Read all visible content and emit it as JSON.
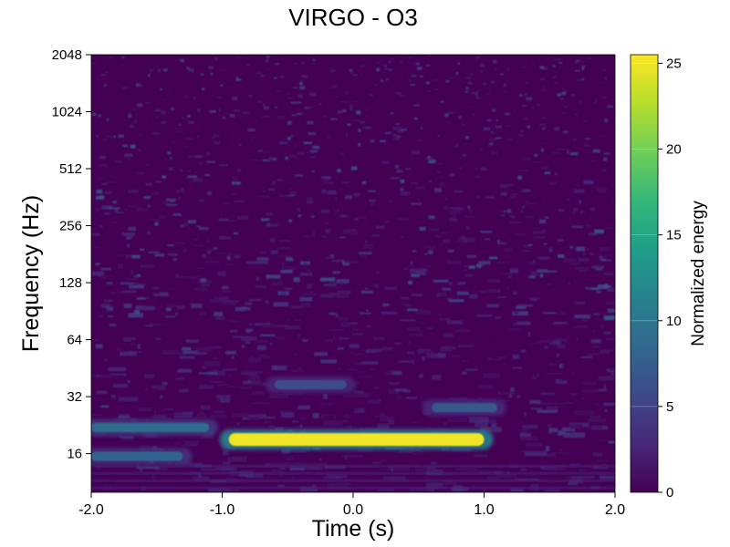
{
  "chart_data": {
    "type": "heatmap",
    "title": "VIRGO - O3",
    "xlabel": "Time (s)",
    "ylabel": "Frequency (Hz)",
    "xlim": [
      -2.0,
      2.0
    ],
    "xticks": [
      -2.0,
      -1.0,
      0.0,
      1.0,
      2.0
    ],
    "xtick_labels": [
      "-2.0",
      "-1.0",
      "0.0",
      "1.0",
      "2.0"
    ],
    "ylim": [
      10,
      2048
    ],
    "yscale": "log2",
    "yticks": [
      16,
      32,
      64,
      128,
      256,
      512,
      1024,
      2048
    ],
    "ytick_labels": [
      "16",
      "32",
      "64",
      "128",
      "256",
      "512",
      "1024",
      "2048"
    ],
    "colorbar": {
      "label": "Normalized energy",
      "range": [
        0,
        25.5
      ],
      "ticks": [
        0,
        5,
        10,
        15,
        20,
        25
      ],
      "tick_labels": [
        "0",
        "5",
        "10",
        "15",
        "20",
        "25"
      ],
      "colormap": [
        "#440154",
        "#482878",
        "#3e4a89",
        "#31688e",
        "#26828e",
        "#1f9e89",
        "#35b779",
        "#6ece58",
        "#b5de2b",
        "#fde725"
      ]
    },
    "features": [
      {
        "t_start": -0.95,
        "t_end": 1.0,
        "freq_hz": 19,
        "energy": 25
      },
      {
        "t_start": -2.0,
        "t_end": -1.1,
        "freq_hz": 22,
        "energy": 9
      },
      {
        "t_start": -2.0,
        "t_end": -1.3,
        "freq_hz": 15.5,
        "energy": 8
      },
      {
        "t_start": 0.6,
        "t_end": 1.1,
        "freq_hz": 28,
        "energy": 7
      },
      {
        "t_start": -0.6,
        "t_end": -0.05,
        "freq_hz": 37,
        "energy": 6
      }
    ]
  }
}
